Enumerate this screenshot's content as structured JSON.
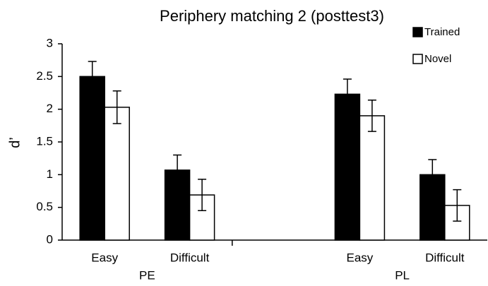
{
  "chart_data": {
    "type": "bar",
    "title": "Periphery matching 2 (posttest3)",
    "ylabel": "d’",
    "categories": [
      "Easy",
      "Difficult",
      null,
      "Easy",
      "Difficult"
    ],
    "groups": [
      {
        "label": "PE",
        "span": [
          0,
          1
        ]
      },
      {
        "label": "PL",
        "span": [
          3,
          4
        ]
      }
    ],
    "series": [
      {
        "name": "Trained",
        "color": "#000000",
        "values": [
          2.5,
          1.07,
          null,
          2.23,
          1.0
        ],
        "errors": [
          0.23,
          0.23,
          null,
          0.23,
          0.23
        ]
      },
      {
        "name": "Novel",
        "color": "#ffffff",
        "values": [
          2.03,
          0.69,
          null,
          1.9,
          0.53
        ],
        "errors": [
          0.25,
          0.24,
          null,
          0.24,
          0.24
        ]
      }
    ],
    "ylim": [
      0,
      3
    ],
    "yticks": [
      0,
      0.5,
      1,
      1.5,
      2,
      2.5,
      3
    ],
    "grid": false,
    "legend": "top-right"
  }
}
